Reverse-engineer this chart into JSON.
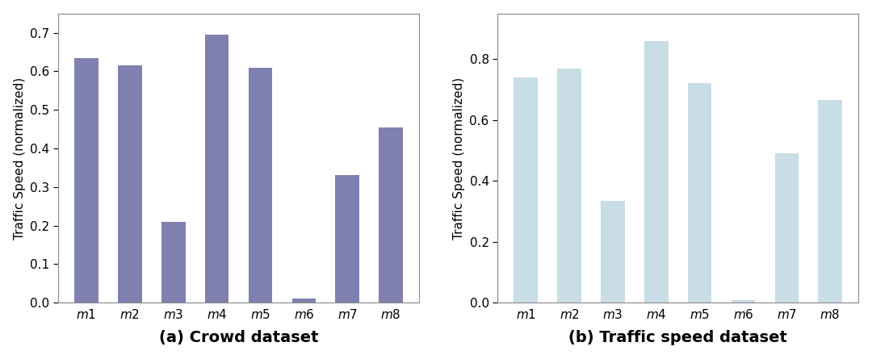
{
  "categories": [
    "m1",
    "m2",
    "m3",
    "m4",
    "m5",
    "m6",
    "m7",
    "m8"
  ],
  "values_a": [
    0.635,
    0.615,
    0.21,
    0.695,
    0.61,
    0.012,
    0.33,
    0.455
  ],
  "values_b": [
    0.74,
    0.77,
    0.335,
    0.86,
    0.72,
    0.01,
    0.49,
    0.665
  ],
  "color_a": "#8080b0",
  "color_b": "#c8dde5",
  "ylabel": "Traffic Speed (normalized)",
  "title_a": "(a) Crowd dataset",
  "title_b": "(b) Traffic speed dataset",
  "ylim_a": [
    0,
    0.75
  ],
  "ylim_b": [
    0,
    0.95
  ],
  "title_fontsize": 14,
  "label_fontsize": 11,
  "tick_fontsize": 11
}
